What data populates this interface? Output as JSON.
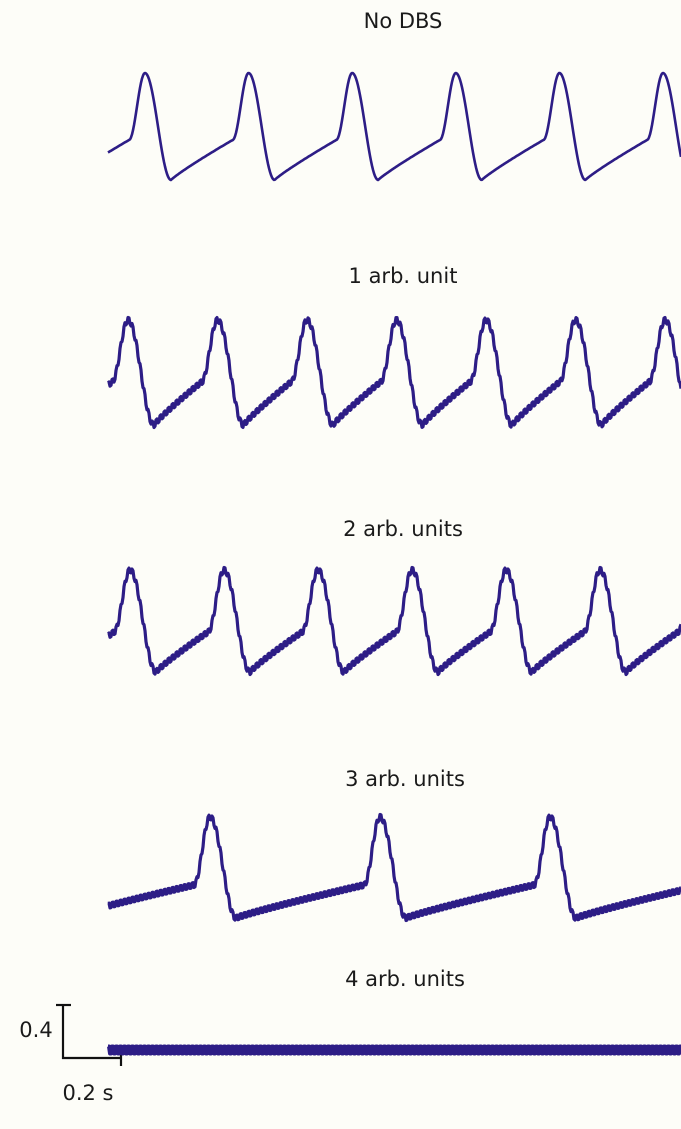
{
  "panels": [
    {
      "title": "No DBS"
    },
    {
      "title": "1 arb. unit"
    },
    {
      "title": "2 arb. units"
    },
    {
      "title": "3 arb. units"
    },
    {
      "title": "4 arb. units"
    }
  ],
  "scale_bar": {
    "y_label": "0.4",
    "x_label": "0.2 s"
  }
}
